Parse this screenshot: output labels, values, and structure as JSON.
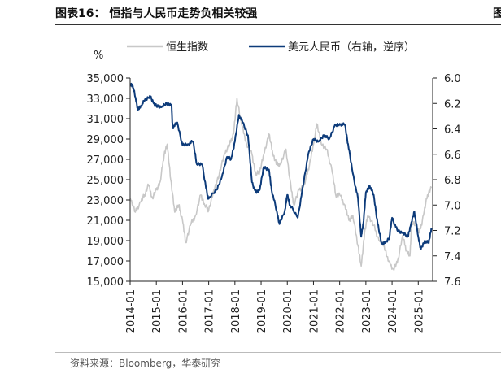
{
  "figure": {
    "title": "图表16：  恒指与人民币走势负相关较强",
    "source": "资料来源：Bloomberg，华泰研究",
    "edge_mark": "图"
  },
  "chart_data": {
    "type": "line",
    "left_unit": "%",
    "left_axis": {
      "ylim": [
        15000,
        35000
      ],
      "ticks": [
        15000,
        17000,
        19000,
        21000,
        23000,
        25000,
        27000,
        29000,
        31000,
        33000,
        35000
      ],
      "tick_labels": [
        "15,000",
        "17,000",
        "19,000",
        "21,000",
        "23,000",
        "25,000",
        "27,000",
        "29,000",
        "31,000",
        "33,000",
        "35,000"
      ]
    },
    "right_axis": {
      "ylim": [
        6.0,
        7.6
      ],
      "inverted": true,
      "ticks": [
        6.0,
        6.2,
        6.4,
        6.6,
        6.8,
        7.0,
        7.2,
        7.4,
        7.6
      ],
      "tick_labels": [
        "6.0",
        "6.2",
        "6.4",
        "6.6",
        "6.8",
        "7.0",
        "7.2",
        "7.4",
        "7.6"
      ]
    },
    "x_axis": {
      "ticks": [
        2014.0,
        2015.0,
        2016.0,
        2017.0,
        2018.0,
        2019.0,
        2020.0,
        2021.0,
        2022.0,
        2023.0,
        2024.0,
        2025.0
      ],
      "tick_labels": [
        "2014-01",
        "2015-01",
        "2016-01",
        "2017-01",
        "2018-01",
        "2019-01",
        "2020-01",
        "2021-01",
        "2022-01",
        "2023-01",
        "2024-01",
        "2025-01"
      ],
      "xlim": [
        2014.0,
        2025.55
      ]
    },
    "legend_position": "top",
    "series": [
      {
        "name": "恒生指数",
        "axis": "left",
        "color": "#c8c8c8",
        "x": [
          2014.0,
          2014.2,
          2014.4,
          2014.55,
          2014.7,
          2014.85,
          2015.0,
          2015.15,
          2015.3,
          2015.42,
          2015.55,
          2015.7,
          2015.85,
          2016.0,
          2016.12,
          2016.3,
          2016.5,
          2016.7,
          2016.85,
          2017.0,
          2017.2,
          2017.4,
          2017.6,
          2017.8,
          2017.95,
          2018.08,
          2018.25,
          2018.45,
          2018.65,
          2018.8,
          2018.95,
          2019.1,
          2019.3,
          2019.45,
          2019.6,
          2019.75,
          2019.95,
          2020.15,
          2020.25,
          2020.45,
          2020.65,
          2020.85,
          2021.0,
          2021.13,
          2021.3,
          2021.5,
          2021.7,
          2021.85,
          2022.0,
          2022.2,
          2022.35,
          2022.5,
          2022.7,
          2022.82,
          2022.95,
          2023.08,
          2023.3,
          2023.5,
          2023.7,
          2023.85,
          2024.05,
          2024.2,
          2024.4,
          2024.55,
          2024.68,
          2024.75,
          2024.9,
          2025.05,
          2025.2,
          2025.35,
          2025.5
        ],
        "values": [
          23200,
          21800,
          22800,
          23500,
          24500,
          23200,
          24000,
          24800,
          27500,
          28500,
          25000,
          21800,
          22500,
          21000,
          18800,
          20500,
          21500,
          23500,
          22500,
          22000,
          24000,
          25500,
          27500,
          28500,
          29500,
          33000,
          30500,
          28500,
          27500,
          25500,
          25800,
          27500,
          29500,
          27500,
          26500,
          26500,
          28000,
          24000,
          22500,
          24000,
          24500,
          26500,
          28500,
          30500,
          28500,
          28000,
          26000,
          23500,
          23500,
          22500,
          21000,
          21500,
          18500,
          16500,
          19800,
          21500,
          20500,
          19000,
          18500,
          17000,
          16200,
          16800,
          19500,
          18000,
          17500,
          20800,
          20500,
          19800,
          21500,
          23500,
          24200
        ]
      },
      {
        "name": "美元人民币（右轴，逆序）",
        "axis": "right",
        "color": "#0d3b7a",
        "x": [
          2014.0,
          2014.1,
          2014.2,
          2014.3,
          2014.4,
          2014.55,
          2014.75,
          2014.9,
          2015.0,
          2015.2,
          2015.4,
          2015.58,
          2015.62,
          2015.8,
          2016.0,
          2016.2,
          2016.4,
          2016.55,
          2016.75,
          2016.95,
          2017.0,
          2017.3,
          2017.5,
          2017.7,
          2017.85,
          2018.0,
          2018.15,
          2018.3,
          2018.5,
          2018.65,
          2018.8,
          2018.95,
          2019.1,
          2019.3,
          2019.4,
          2019.6,
          2019.7,
          2019.9,
          2020.0,
          2020.1,
          2020.4,
          2020.6,
          2020.8,
          2021.0,
          2021.2,
          2021.4,
          2021.6,
          2021.8,
          2022.0,
          2022.2,
          2022.32,
          2022.5,
          2022.7,
          2022.82,
          2022.9,
          2023.0,
          2023.15,
          2023.3,
          2023.45,
          2023.6,
          2023.75,
          2023.9,
          2024.0,
          2024.2,
          2024.4,
          2024.6,
          2024.72,
          2024.85,
          2025.0,
          2025.1,
          2025.25,
          2025.4,
          2025.5
        ],
        "values": [
          6.05,
          6.06,
          6.15,
          6.25,
          6.22,
          6.18,
          6.14,
          6.2,
          6.22,
          6.23,
          6.2,
          6.21,
          6.39,
          6.35,
          6.53,
          6.52,
          6.5,
          6.68,
          6.68,
          6.93,
          6.95,
          6.88,
          6.78,
          6.62,
          6.64,
          6.5,
          6.29,
          6.35,
          6.45,
          6.82,
          6.9,
          6.88,
          6.7,
          6.72,
          6.88,
          7.05,
          7.15,
          7.05,
          6.92,
          7.0,
          7.1,
          6.85,
          6.6,
          6.48,
          6.5,
          6.45,
          6.48,
          6.38,
          6.36,
          6.37,
          6.52,
          6.75,
          6.95,
          7.25,
          7.15,
          6.9,
          6.85,
          6.92,
          7.15,
          7.3,
          7.3,
          7.25,
          7.1,
          7.2,
          7.22,
          7.25,
          7.15,
          7.05,
          7.25,
          7.35,
          7.28,
          7.3,
          7.18
        ]
      }
    ]
  }
}
